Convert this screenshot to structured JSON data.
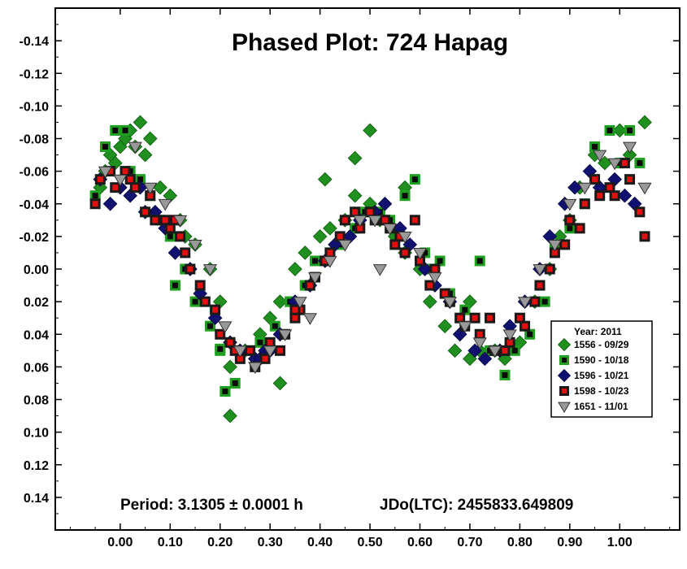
{
  "chart_data": {
    "type": "scatter",
    "title": "Phased Plot: 724 Hapag",
    "subtitle": "",
    "xlabel": "",
    "ylabel": "",
    "xlim": [
      -0.13,
      1.12
    ],
    "ylim": [
      0.16,
      -0.16
    ],
    "y_inverted": true,
    "grid": false,
    "x_ticks": [
      0.0,
      0.1,
      0.2,
      0.3,
      0.4,
      0.5,
      0.6,
      0.7,
      0.8,
      0.9,
      1.0
    ],
    "x_tick_labels": [
      "0.00",
      "0.10",
      "0.20",
      "0.30",
      "0.40",
      "0.50",
      "0.60",
      "0.70",
      "0.80",
      "0.90",
      "1.00"
    ],
    "y_ticks": [
      -0.14,
      -0.12,
      -0.1,
      -0.08,
      -0.06,
      -0.04,
      -0.02,
      0.0,
      0.02,
      0.04,
      0.06,
      0.08,
      0.1,
      0.12,
      0.14
    ],
    "y_tick_labels": [
      "-0.14",
      "-0.12",
      "-0.10",
      "-0.08",
      "-0.06",
      "-0.04",
      "-0.02",
      "0.00",
      "0.02",
      "0.04",
      "0.06",
      "0.08",
      "0.10",
      "0.12",
      "0.14"
    ],
    "annotations": {
      "period": "Period: 3.1305 ± 0.0001 h",
      "epoch": "JDo(LTC): 2455833.649809"
    },
    "legend": {
      "placement": "lower-right",
      "title": "Year: 2011"
    },
    "series": [
      {
        "name": "1556 - 09/29",
        "marker": "diamond",
        "fill": "#1f8f1f",
        "stroke": "#0b5a0b",
        "x": [
          -0.04,
          -0.03,
          -0.02,
          -0.01,
          0.0,
          0.01,
          0.02,
          0.03,
          0.04,
          0.05,
          0.06,
          0.08,
          0.1,
          0.12,
          0.15,
          0.18,
          0.2,
          0.22,
          0.25,
          0.28,
          0.3,
          0.32,
          0.35,
          0.37,
          0.4,
          0.42,
          0.45,
          0.47,
          0.5,
          0.52,
          0.55,
          0.57,
          0.6,
          0.62,
          0.65,
          0.67,
          0.7,
          0.72,
          0.75,
          0.77,
          0.8,
          0.83,
          0.86,
          0.88,
          0.9,
          0.92,
          0.95,
          0.97,
          1.0,
          1.02,
          1.05,
          0.41,
          0.47,
          0.5,
          0.22,
          0.32,
          0.68,
          0.7,
          0.57,
          0.13
        ],
        "y": [
          -0.05,
          -0.06,
          -0.07,
          -0.065,
          -0.075,
          -0.08,
          -0.085,
          -0.075,
          -0.09,
          -0.07,
          -0.08,
          -0.05,
          -0.045,
          -0.03,
          -0.015,
          0.0,
          0.02,
          0.06,
          0.05,
          0.04,
          0.03,
          0.02,
          0.0,
          -0.01,
          -0.02,
          -0.025,
          -0.03,
          -0.045,
          -0.04,
          -0.03,
          -0.02,
          -0.01,
          0.0,
          0.02,
          0.035,
          0.05,
          0.055,
          0.05,
          0.05,
          0.055,
          0.045,
          0.02,
          0.0,
          -0.02,
          -0.03,
          -0.05,
          -0.07,
          -0.065,
          -0.085,
          -0.07,
          -0.09,
          -0.055,
          -0.068,
          -0.085,
          0.09,
          0.07,
          0.04,
          0.02,
          -0.05,
          -0.02
        ]
      },
      {
        "name": "1590 - 10/18",
        "marker": "square",
        "fill": "#0a0a0a",
        "stroke": "#1f9f1f",
        "x": [
          -0.05,
          -0.03,
          -0.01,
          0.01,
          0.02,
          0.04,
          0.06,
          0.08,
          0.1,
          0.11,
          0.13,
          0.15,
          0.18,
          0.2,
          0.21,
          0.23,
          0.26,
          0.28,
          0.31,
          0.34,
          0.37,
          0.39,
          0.42,
          0.44,
          0.47,
          0.49,
          0.52,
          0.54,
          0.57,
          0.59,
          0.61,
          0.64,
          0.66,
          0.69,
          0.72,
          0.74,
          0.77,
          0.79,
          0.82,
          0.85,
          0.87,
          0.9,
          0.93,
          0.95,
          0.98,
          1.0,
          1.02,
          1.04,
          0.21,
          0.2,
          0.61,
          0.34
        ],
        "y": [
          -0.045,
          -0.075,
          -0.085,
          -0.085,
          -0.06,
          -0.055,
          -0.045,
          -0.03,
          -0.02,
          0.01,
          0.0,
          0.02,
          0.035,
          0.05,
          0.075,
          0.07,
          0.05,
          0.045,
          0.035,
          0.02,
          0.01,
          -0.005,
          -0.01,
          -0.015,
          -0.025,
          -0.035,
          -0.035,
          -0.03,
          -0.045,
          -0.055,
          -0.01,
          -0.005,
          0.015,
          0.025,
          -0.005,
          0.05,
          0.065,
          0.05,
          0.04,
          0.02,
          -0.015,
          -0.025,
          -0.04,
          -0.075,
          -0.085,
          -0.065,
          -0.085,
          -0.065,
          0.075,
          0.049,
          0.0,
          0.02
        ]
      },
      {
        "name": "1596 - 10/21",
        "marker": "diamond",
        "fill": "#101070",
        "stroke": "#06063f",
        "x": [
          -0.04,
          -0.02,
          0.0,
          0.02,
          0.04,
          0.07,
          0.09,
          0.11,
          0.14,
          0.16,
          0.19,
          0.22,
          0.24,
          0.27,
          0.29,
          0.32,
          0.35,
          0.38,
          0.41,
          0.43,
          0.46,
          0.48,
          0.51,
          0.53,
          0.56,
          0.58,
          0.61,
          0.63,
          0.66,
          0.68,
          0.71,
          0.73,
          0.76,
          0.78,
          0.81,
          0.84,
          0.86,
          0.89,
          0.91,
          0.94,
          0.96,
          0.99,
          1.01,
          1.03,
          0.28,
          0.3,
          0.05
        ],
        "y": [
          -0.055,
          -0.04,
          -0.05,
          -0.045,
          -0.05,
          -0.035,
          -0.025,
          -0.01,
          0.0,
          0.015,
          0.03,
          0.045,
          0.05,
          0.055,
          0.05,
          0.04,
          0.02,
          0.01,
          -0.005,
          -0.015,
          -0.02,
          -0.03,
          -0.035,
          -0.04,
          -0.025,
          -0.015,
          0.0,
          0.01,
          0.02,
          0.04,
          0.05,
          0.055,
          0.05,
          0.035,
          0.02,
          0.0,
          -0.02,
          -0.04,
          -0.05,
          -0.06,
          -0.05,
          -0.055,
          -0.045,
          -0.04,
          0.055,
          0.05,
          -0.035
        ]
      },
      {
        "name": "1598 - 10/23",
        "marker": "square",
        "fill": "#e21010",
        "stroke": "#1a1a1a",
        "x": [
          -0.05,
          -0.04,
          -0.02,
          -0.01,
          0.01,
          0.02,
          0.03,
          0.05,
          0.06,
          0.07,
          0.09,
          0.1,
          0.12,
          0.13,
          0.14,
          0.16,
          0.17,
          0.19,
          0.2,
          0.22,
          0.23,
          0.24,
          0.26,
          0.27,
          0.29,
          0.3,
          0.32,
          0.33,
          0.35,
          0.36,
          0.38,
          0.39,
          0.41,
          0.42,
          0.44,
          0.45,
          0.47,
          0.48,
          0.5,
          0.51,
          0.53,
          0.54,
          0.56,
          0.57,
          0.59,
          0.6,
          0.62,
          0.63,
          0.65,
          0.66,
          0.68,
          0.69,
          0.71,
          0.72,
          0.74,
          0.75,
          0.77,
          0.78,
          0.8,
          0.81,
          0.83,
          0.84,
          0.86,
          0.87,
          0.89,
          0.9,
          0.92,
          0.93,
          0.95,
          0.96,
          0.98,
          0.99,
          1.01,
          1.02,
          1.04,
          1.05,
          0.55,
          0.35,
          0.11
        ],
        "y": [
          -0.04,
          -0.055,
          -0.06,
          -0.05,
          -0.06,
          -0.055,
          -0.05,
          -0.035,
          -0.045,
          -0.03,
          -0.03,
          -0.025,
          -0.02,
          -0.01,
          0.0,
          0.01,
          0.02,
          0.025,
          0.04,
          0.045,
          0.05,
          0.055,
          0.05,
          0.06,
          0.055,
          0.045,
          0.05,
          0.04,
          0.03,
          0.025,
          0.01,
          0.005,
          -0.005,
          -0.01,
          -0.02,
          -0.03,
          -0.035,
          -0.025,
          -0.035,
          -0.03,
          -0.03,
          -0.025,
          -0.02,
          -0.01,
          -0.03,
          -0.005,
          0.01,
          0.0,
          0.015,
          0.02,
          0.03,
          0.035,
          0.03,
          0.04,
          0.03,
          0.05,
          0.05,
          0.045,
          0.03,
          0.035,
          0.02,
          0.01,
          0.0,
          -0.01,
          -0.015,
          -0.03,
          -0.025,
          -0.04,
          -0.055,
          -0.045,
          -0.05,
          -0.045,
          -0.065,
          -0.055,
          -0.035,
          -0.02,
          -0.015,
          0.025,
          -0.03
        ]
      },
      {
        "name": "1651 - 11/01",
        "marker": "triangle",
        "fill": "#999999",
        "stroke": "#333333",
        "x": [
          -0.03,
          0.0,
          0.03,
          0.06,
          0.09,
          0.12,
          0.15,
          0.18,
          0.21,
          0.24,
          0.27,
          0.3,
          0.33,
          0.36,
          0.39,
          0.42,
          0.45,
          0.48,
          0.51,
          0.54,
          0.57,
          0.6,
          0.63,
          0.66,
          0.69,
          0.72,
          0.75,
          0.78,
          0.81,
          0.84,
          0.87,
          0.9,
          0.93,
          0.96,
          0.99,
          1.02,
          1.05,
          0.38,
          0.52
        ],
        "y": [
          -0.06,
          -0.055,
          -0.075,
          -0.05,
          -0.04,
          -0.03,
          -0.015,
          0.0,
          0.035,
          0.05,
          0.06,
          0.05,
          0.04,
          0.02,
          0.005,
          -0.005,
          -0.015,
          -0.03,
          -0.03,
          -0.025,
          -0.02,
          -0.01,
          0.005,
          0.02,
          0.035,
          0.045,
          0.05,
          0.04,
          0.02,
          0.0,
          -0.015,
          -0.04,
          -0.05,
          -0.07,
          -0.065,
          -0.075,
          -0.05,
          0.03,
          0.0
        ]
      }
    ]
  }
}
